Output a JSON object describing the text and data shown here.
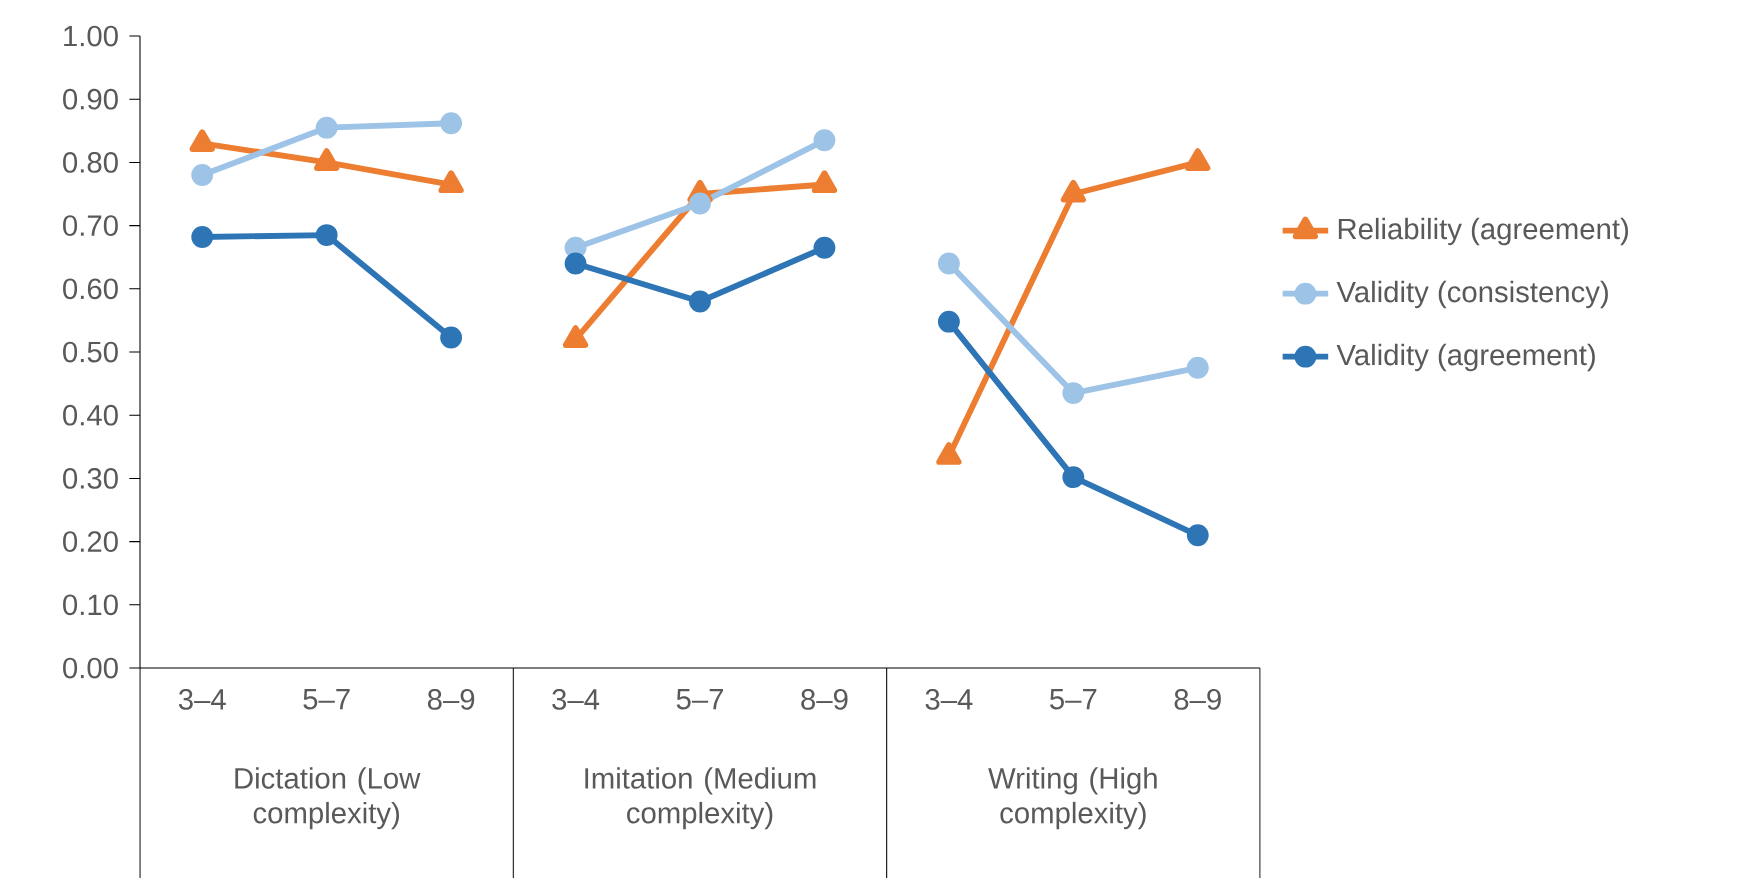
{
  "chart_data": {
    "type": "line",
    "categories": [
      "3–4",
      "5–7",
      "8–9",
      "3–4",
      "5–7",
      "8–9",
      "3–4",
      "5–7",
      "8–9"
    ],
    "series": [
      {
        "name": "Reliability (agreement)",
        "color": "#ed7d31",
        "marker": "triangle",
        "values": [
          0.83,
          0.8,
          0.765,
          0.52,
          0.75,
          0.765,
          0.335,
          0.75,
          0.8
        ]
      },
      {
        "name": "Validity (consistency)",
        "color": "#9dc3e6",
        "marker": "circle",
        "values": [
          0.78,
          0.855,
          0.862,
          0.665,
          0.735,
          0.835,
          0.64,
          0.435,
          0.475
        ]
      },
      {
        "name": "Validity (agreement)",
        "color": "#2e75b6",
        "marker": "circle",
        "values": [
          0.682,
          0.685,
          0.523,
          0.64,
          0.58,
          0.665,
          0.548,
          0.302,
          0.21
        ]
      }
    ],
    "annotations": [
      "Dictation (Low complexity)",
      "Imitation (Medium complexity)",
      "Writing (High complexity)"
    ],
    "ylim": [
      0,
      1
    ],
    "yticks": [
      {
        "value": 0,
        "label": "0.00"
      },
      {
        "value": 0.1,
        "label": "0.10"
      },
      {
        "value": 0.2,
        "label": "0.20"
      },
      {
        "value": 0.3,
        "label": "0.30"
      },
      {
        "value": 0.4,
        "label": "0.40"
      },
      {
        "value": 0.5,
        "label": "0.50"
      },
      {
        "value": 0.6,
        "label": "0.60"
      },
      {
        "value": 0.7,
        "label": "0.70"
      },
      {
        "value": 0.8,
        "label": "0.80"
      },
      {
        "value": 0.9,
        "label": "0.90"
      },
      {
        "value": 1,
        "label": "1.00"
      }
    ],
    "grid": false,
    "legend": "right",
    "line_style": "solid"
  }
}
